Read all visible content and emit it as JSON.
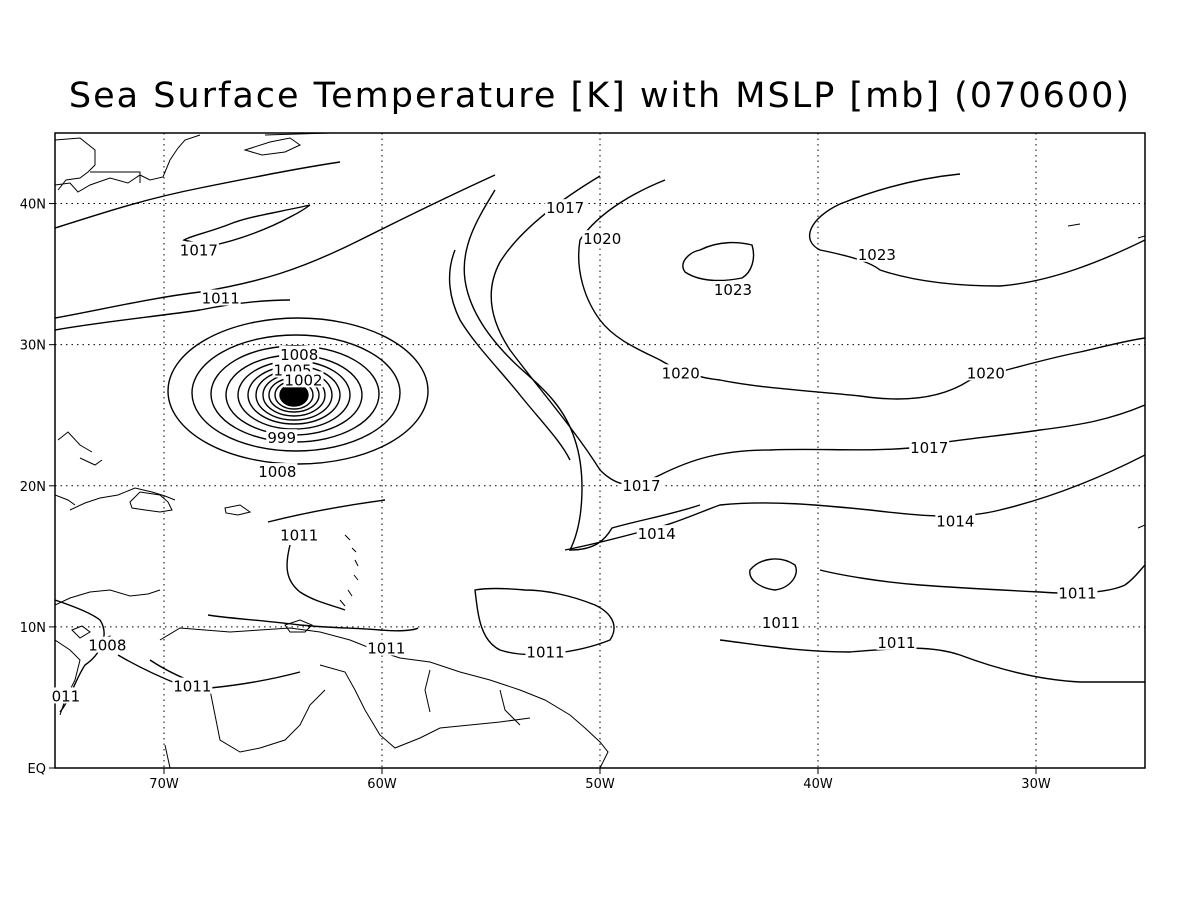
{
  "title": "Sea Surface Temperature [K] with MSLP [mb] (070600)",
  "map": {
    "lon_range": [
      -75,
      -25
    ],
    "lat_range": [
      0,
      45
    ],
    "x_ticks": [
      {
        "lon": -70,
        "label": "70W"
      },
      {
        "lon": -60,
        "label": "60W"
      },
      {
        "lon": -50,
        "label": "50W"
      },
      {
        "lon": -40,
        "label": "40W"
      },
      {
        "lon": -30,
        "label": "30W"
      }
    ],
    "y_ticks": [
      {
        "lat": 0,
        "label": "EQ"
      },
      {
        "lat": 10,
        "label": "10N"
      },
      {
        "lat": 20,
        "label": "20N"
      },
      {
        "lat": 30,
        "label": "30N"
      },
      {
        "lat": 40,
        "label": "40N"
      }
    ],
    "grid": "dotted",
    "storm_center": {
      "lon": -65.0,
      "lat": 26.5
    },
    "contour_labels": [
      {
        "text": "1017",
        "lon": -68.4,
        "lat": 36.6
      },
      {
        "text": "1011",
        "lon": -67.4,
        "lat": 33.2
      },
      {
        "text": "1008",
        "lon": -63.8,
        "lat": 29.2
      },
      {
        "text": "1005",
        "lon": -64.1,
        "lat": 28.1
      },
      {
        "text": "1002",
        "lon": -63.6,
        "lat": 27.4
      },
      {
        "text": "999",
        "lon": -64.6,
        "lat": 23.3
      },
      {
        "text": "1008",
        "lon": -64.8,
        "lat": 20.9
      },
      {
        "text": "1011",
        "lon": -63.8,
        "lat": 16.4
      },
      {
        "text": "1017",
        "lon": -51.6,
        "lat": 39.6
      },
      {
        "text": "1020",
        "lon": -49.9,
        "lat": 37.4
      },
      {
        "text": "1023",
        "lon": -43.9,
        "lat": 33.8
      },
      {
        "text": "1023",
        "lon": -37.3,
        "lat": 36.3
      },
      {
        "text": "1020",
        "lon": -46.3,
        "lat": 27.9
      },
      {
        "text": "1020",
        "lon": -32.3,
        "lat": 27.9
      },
      {
        "text": "1017",
        "lon": -48.1,
        "lat": 19.9
      },
      {
        "text": "1017",
        "lon": -34.9,
        "lat": 22.6
      },
      {
        "text": "1014",
        "lon": -47.4,
        "lat": 16.5
      },
      {
        "text": "1014",
        "lon": -33.7,
        "lat": 17.4
      },
      {
        "text": "1011",
        "lon": -28.1,
        "lat": 12.3
      },
      {
        "text": "1011",
        "lon": -41.7,
        "lat": 10.2
      },
      {
        "text": "1011",
        "lon": -36.4,
        "lat": 8.8
      },
      {
        "text": "1011",
        "lon": -52.5,
        "lat": 8.1
      },
      {
        "text": "1011",
        "lon": -59.8,
        "lat": 8.4
      },
      {
        "text": "1008",
        "lon": -72.6,
        "lat": 8.6
      },
      {
        "text": "1011",
        "lon": -68.7,
        "lat": 5.7
      },
      {
        "text": "011",
        "lon": -74.5,
        "lat": 5.0
      }
    ]
  }
}
